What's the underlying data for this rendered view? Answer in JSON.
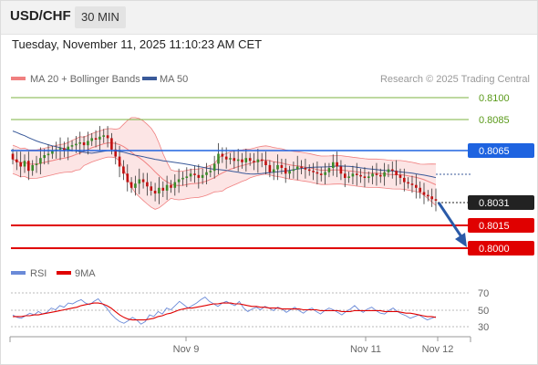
{
  "header": {
    "symbol": "USD/CHF",
    "timeframe": "30 MIN"
  },
  "timestamp": "Tuesday, November 11, 2025 11:10:23 AM CET",
  "legend": {
    "bollinger_label": "MA 20 + Bollinger Bands",
    "ma50_label": "MA 50",
    "credit": "Research © 2025 Trading Central"
  },
  "colors": {
    "bollinger": "#f08080",
    "bollinger_fill": "#fbe0e0",
    "ma50": "#3a5a9a",
    "resistance": "#6aaa2a",
    "pivot": "#1e63e0",
    "support": "#e00000",
    "price_tag": "#222222",
    "arrow": "#2a5aa8",
    "rsi": "#6a8ad8",
    "rsi_ma": "#e00000",
    "candle_up": "#3a8a2a",
    "candle_down": "#c01010"
  },
  "chart_data": [
    {
      "type": "candlestick",
      "title": "",
      "ylim": [
        0.7993,
        0.8108
      ],
      "x_ticks": [
        "Nov 9",
        "Nov 11",
        "Nov 12"
      ],
      "levels": [
        {
          "value": "0.8100",
          "type": "resistance"
        },
        {
          "value": "0.8085",
          "type": "resistance"
        },
        {
          "value": "0.8065",
          "type": "pivot"
        },
        {
          "value": "0.8031",
          "type": "current"
        },
        {
          "value": "0.8015",
          "type": "support"
        },
        {
          "value": "0.8000",
          "type": "support"
        }
      ],
      "series": [
        {
          "name": "MA 20 + Bollinger Bands",
          "indicator": "bollinger"
        },
        {
          "name": "MA 50",
          "indicator": "ma50"
        }
      ],
      "close": [
        0.806,
        0.8058,
        0.8055,
        0.8059,
        0.8052,
        0.8056,
        0.8057,
        0.8061,
        0.8063,
        0.8064,
        0.8066,
        0.8067,
        0.8068,
        0.8066,
        0.8069,
        0.807,
        0.8071,
        0.8072,
        0.807,
        0.8073,
        0.8075,
        0.8074,
        0.8076,
        0.8077,
        0.8075,
        0.8067,
        0.8062,
        0.8055,
        0.805,
        0.8044,
        0.804,
        0.8043,
        0.8046,
        0.8044,
        0.8041,
        0.8038,
        0.8036,
        0.804,
        0.8038,
        0.8042,
        0.804,
        0.8044,
        0.8046,
        0.8047,
        0.8048,
        0.805,
        0.8049,
        0.8047,
        0.8049,
        0.8051,
        0.8052,
        0.8057,
        0.8064,
        0.8062,
        0.806,
        0.8061,
        0.8059,
        0.806,
        0.8058,
        0.8061,
        0.8059,
        0.8058,
        0.806,
        0.8059,
        0.8056,
        0.8051,
        0.8053,
        0.8056,
        0.8054,
        0.805,
        0.8052,
        0.8053,
        0.8055,
        0.8054,
        0.8053,
        0.8052,
        0.8051,
        0.805,
        0.8049,
        0.8051,
        0.8054,
        0.8058,
        0.8055,
        0.805,
        0.8047,
        0.8048,
        0.805,
        0.8049,
        0.8048,
        0.8047,
        0.8048,
        0.805,
        0.8049,
        0.8048,
        0.8051,
        0.8053,
        0.8052,
        0.8049,
        0.8047,
        0.8044,
        0.8043,
        0.8042,
        0.804,
        0.8037,
        0.8035,
        0.8034,
        0.8032,
        0.8031
      ]
    },
    {
      "type": "line",
      "title": "",
      "ylim": [
        25,
        75
      ],
      "y_ticks": [
        "70",
        "50",
        "30"
      ],
      "series": [
        {
          "name": "RSI",
          "values": [
            44,
            41,
            40,
            43,
            46,
            44,
            48,
            45,
            47,
            52,
            50,
            55,
            53,
            58,
            57,
            60,
            62,
            58,
            56,
            60,
            63,
            57,
            52,
            45,
            40,
            36,
            34,
            37,
            41,
            38,
            33,
            36,
            44,
            42,
            48,
            45,
            52,
            50,
            55,
            60,
            56,
            52,
            55,
            58,
            62,
            65,
            60,
            57,
            54,
            58,
            60,
            57,
            55,
            60,
            52,
            48,
            51,
            53,
            50,
            54,
            52,
            49,
            53,
            51,
            47,
            50,
            53,
            49,
            46,
            50,
            52,
            48,
            45,
            49,
            52,
            50,
            47,
            44,
            48,
            51,
            55,
            50,
            47,
            51,
            53,
            49,
            46,
            45,
            49,
            52,
            48,
            45,
            43,
            40,
            42,
            44,
            41,
            38,
            40,
            42
          ]
        },
        {
          "name": "9MA",
          "values": [
            42,
            42,
            42,
            43,
            43,
            44,
            44,
            45,
            46,
            47,
            48,
            49,
            50,
            51,
            52,
            53,
            55,
            56,
            57,
            58,
            58,
            57,
            55,
            52,
            48,
            44,
            41,
            39,
            38,
            38,
            38,
            38,
            39,
            40,
            42,
            43,
            45,
            46,
            48,
            50,
            51,
            52,
            52,
            53,
            54,
            55,
            56,
            57,
            57,
            58,
            58,
            58,
            57,
            57,
            56,
            55,
            54,
            54,
            53,
            53,
            52,
            52,
            52,
            51,
            51,
            51,
            51,
            51,
            50,
            50,
            50,
            50,
            49,
            49,
            49,
            49,
            49,
            48,
            48,
            48,
            49,
            49,
            49,
            49,
            49,
            49,
            49,
            48,
            48,
            48,
            48,
            47,
            46,
            46,
            45,
            44,
            43,
            42,
            42,
            41
          ]
        }
      ]
    }
  ]
}
